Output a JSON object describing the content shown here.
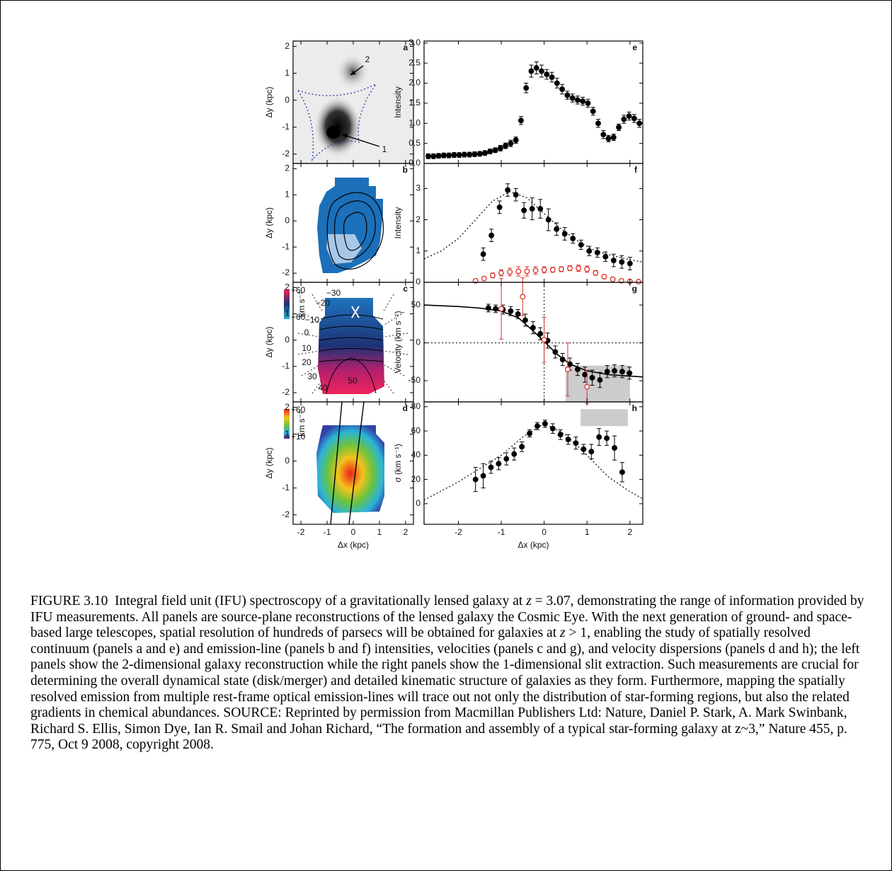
{
  "chart_data": [
    {
      "type": "image",
      "panel": "a",
      "ylabel": "Δy (kpc)",
      "xlim": [
        -2.3,
        2.3
      ],
      "ylim": [
        -2.35,
        2.2
      ],
      "xticks": [
        -2,
        -1,
        0,
        1,
        2
      ],
      "yticks": [
        -2,
        -1,
        0,
        1,
        2
      ],
      "annotations": [
        "2",
        "1"
      ]
    },
    {
      "type": "image",
      "panel": "b",
      "ylabel": "Δy (kpc)",
      "xlim": [
        -2.3,
        2.3
      ],
      "ylim": [
        -2.35,
        2.2
      ],
      "xticks": [
        -2,
        -1,
        0,
        1,
        2
      ],
      "yticks": [
        -2,
        -1,
        0,
        1,
        2
      ]
    },
    {
      "type": "image",
      "panel": "c",
      "ylabel": "Δy (kpc)",
      "xlim": [
        -2.3,
        2.3
      ],
      "ylim": [
        -2.35,
        2.2
      ],
      "xticks": [
        -2,
        -1,
        0,
        1,
        2
      ],
      "yticks": [
        -2,
        -1,
        0,
        1,
        2
      ],
      "colorbar": {
        "labels": [
          "+60",
          "−60"
        ],
        "unit": "km s⁻¹"
      },
      "annotations": [
        "−30",
        "−20",
        "−10",
        "0",
        "10",
        "20",
        "30",
        "40",
        "50"
      ]
    },
    {
      "type": "image",
      "panel": "d",
      "ylabel": "Δy (kpc)",
      "xlabel": "Δx (kpc)",
      "xlim": [
        -2.3,
        2.3
      ],
      "ylim": [
        -2.35,
        2.2
      ],
      "xticks": [
        -2,
        -1,
        0,
        1,
        2
      ],
      "yticks": [
        -2,
        -1,
        0,
        1,
        2
      ],
      "colorbar": {
        "labels": [
          "+60",
          "+10"
        ],
        "unit": "km s⁻¹"
      }
    },
    {
      "type": "scatter",
      "panel": "e",
      "ylabel": "Intensity",
      "xlim": [
        -2.8,
        2.3
      ],
      "ylim": [
        0,
        3.05
      ],
      "xticks": [
        -2,
        -1,
        0,
        1,
        2
      ],
      "yticks": [
        {
          "value": 0,
          "label": "0.0"
        },
        {
          "value": 0.5,
          "label": "0.5"
        },
        {
          "value": 1,
          "label": "1.0"
        },
        {
          "value": 1.5,
          "label": "1.5"
        },
        {
          "value": 2,
          "label": "2.0"
        },
        {
          "value": 2.5,
          "label": "2.5"
        },
        {
          "value": 3,
          "label": "3.0"
        }
      ],
      "series": [
        {
          "color": "#000000",
          "marker": "filled",
          "x": [
            -2.7,
            -2.58,
            -2.46,
            -2.34,
            -2.22,
            -2.1,
            -1.98,
            -1.86,
            -1.74,
            -1.62,
            -1.5,
            -1.38,
            -1.26,
            -1.14,
            -1.02,
            -0.9,
            -0.78,
            -0.66,
            -0.54,
            -0.42,
            -0.3,
            -0.18,
            -0.06,
            0.06,
            0.18,
            0.3,
            0.42,
            0.54,
            0.66,
            0.78,
            0.9,
            1.02,
            1.14,
            1.26,
            1.38,
            1.5,
            1.62,
            1.74,
            1.86,
            1.98,
            2.1,
            2.22
          ],
          "values": [
            0.18,
            0.18,
            0.19,
            0.2,
            0.2,
            0.21,
            0.21,
            0.22,
            0.22,
            0.23,
            0.24,
            0.26,
            0.3,
            0.33,
            0.38,
            0.44,
            0.5,
            0.58,
            1.07,
            1.88,
            2.3,
            2.38,
            2.3,
            2.22,
            2.15,
            2.0,
            1.85,
            1.7,
            1.63,
            1.58,
            1.55,
            1.5,
            1.3,
            1.0,
            0.72,
            0.62,
            0.65,
            0.9,
            1.1,
            1.18,
            1.12,
            1.0
          ],
          "errors": [
            0.06,
            0.06,
            0.06,
            0.06,
            0.06,
            0.06,
            0.06,
            0.06,
            0.06,
            0.06,
            0.06,
            0.06,
            0.06,
            0.06,
            0.07,
            0.07,
            0.08,
            0.08,
            0.1,
            0.12,
            0.15,
            0.15,
            0.15,
            0.12,
            0.12,
            0.12,
            0.12,
            0.1,
            0.1,
            0.1,
            0.1,
            0.1,
            0.1,
            0.1,
            0.1,
            0.08,
            0.08,
            0.08,
            0.1,
            0.1,
            0.1,
            0.1
          ]
        }
      ]
    },
    {
      "type": "scatter",
      "panel": "f",
      "ylabel": "Intensity",
      "xlim": [
        -2.8,
        2.3
      ],
      "ylim": [
        0,
        3.8
      ],
      "xticks": [
        -2,
        -1,
        0,
        1,
        2
      ],
      "yticks": [
        0,
        1,
        2,
        3
      ],
      "curves": [
        {
          "color": "#000000",
          "style": "dotted",
          "x": [
            -2.8,
            -2.4,
            -2.0,
            -1.6,
            -1.2,
            -0.8,
            -0.4,
            0,
            0.4,
            0.8,
            1.2,
            1.6,
            2.0,
            2.3
          ],
          "values": [
            0.75,
            1.0,
            1.4,
            2.0,
            2.6,
            2.9,
            2.7,
            2.2,
            1.7,
            1.3,
            1.0,
            0.85,
            0.72,
            0.65
          ]
        }
      ],
      "series": [
        {
          "color": "#000000",
          "marker": "filled",
          "x": [
            -1.42,
            -1.23,
            -1.04,
            -0.85,
            -0.66,
            -0.47,
            -0.28,
            -0.09,
            0.1,
            0.29,
            0.48,
            0.67,
            0.86,
            1.05,
            1.24,
            1.43,
            1.62,
            1.81,
            2.0
          ],
          "values": [
            0.9,
            1.5,
            2.4,
            2.95,
            2.8,
            2.3,
            2.35,
            2.35,
            2.0,
            1.7,
            1.55,
            1.4,
            1.2,
            1.0,
            0.95,
            0.82,
            0.7,
            0.65,
            0.6
          ],
          "errors": [
            0.2,
            0.2,
            0.2,
            0.2,
            0.2,
            0.25,
            0.35,
            0.3,
            0.35,
            0.2,
            0.2,
            0.15,
            0.15,
            0.15,
            0.15,
            0.15,
            0.2,
            0.2,
            0.2
          ]
        },
        {
          "color": "#d9342b",
          "marker": "open",
          "x": [
            -1.6,
            -1.4,
            -1.2,
            -1.0,
            -0.8,
            -0.6,
            -0.4,
            -0.2,
            0,
            0.2,
            0.4,
            0.6,
            0.8,
            1.0,
            1.2,
            1.4,
            1.6,
            1.8,
            2.0,
            2.2
          ],
          "values": [
            0.05,
            0.12,
            0.22,
            0.3,
            0.33,
            0.35,
            0.35,
            0.38,
            0.4,
            0.4,
            0.42,
            0.45,
            0.45,
            0.42,
            0.3,
            0.18,
            0.1,
            0.05,
            0.03,
            0.02
          ],
          "errors": [
            0.05,
            0.06,
            0.08,
            0.1,
            0.12,
            0.15,
            0.15,
            0.12,
            0.1,
            0.08,
            0.08,
            0.08,
            0.1,
            0.1,
            0.08,
            0.06,
            0.05,
            0.05,
            0.04,
            0.04
          ]
        }
      ]
    },
    {
      "type": "scatter",
      "panel": "g",
      "ylabel": "Velocity (km s⁻¹)",
      "xlim": [
        -2.8,
        2.3
      ],
      "ylim": [
        -78,
        80
      ],
      "xticks": [
        -2,
        -1,
        0,
        1,
        2
      ],
      "yticks": [
        -50,
        0,
        50
      ],
      "shade": {
        "color": "#cccccc",
        "x": [
          0.5,
          2.0
        ],
        "y": [
          -78,
          -30
        ]
      },
      "hlines": [
        0
      ],
      "vlines": [
        0
      ],
      "curves": [
        {
          "color": "#000000",
          "style": "solid",
          "x": [
            -2.8,
            -2.0,
            -1.5,
            -1.0,
            -0.6,
            -0.3,
            0,
            0.3,
            0.6,
            1.0,
            1.5,
            2.0,
            2.3
          ],
          "values": [
            50,
            48,
            46,
            42,
            33,
            18,
            2,
            -15,
            -28,
            -37,
            -42,
            -44,
            -45
          ]
        }
      ],
      "series": [
        {
          "color": "#000000",
          "marker": "filled",
          "x": [
            -1.3,
            -1.13,
            -0.96,
            -0.78,
            -0.61,
            -0.44,
            -0.26,
            -0.09,
            0.08,
            0.26,
            0.43,
            0.6,
            0.78,
            0.95,
            1.12,
            1.3,
            1.47,
            1.64,
            1.82,
            1.99
          ],
          "values": [
            46,
            45,
            44,
            42,
            38,
            30,
            20,
            12,
            3,
            -12,
            -22,
            -28,
            -35,
            -42,
            -46,
            -49,
            -38,
            -37,
            -38,
            -40
          ],
          "errors": [
            5,
            5,
            6,
            6,
            6,
            8,
            8,
            8,
            10,
            8,
            8,
            8,
            8,
            10,
            10,
            10,
            8,
            8,
            8,
            8
          ]
        },
        {
          "color": "#d9342b",
          "marker": "open",
          "x": [
            -1.0,
            -0.5,
            0,
            0.55,
            1.0
          ],
          "values": [
            45,
            61,
            4,
            -35,
            -58
          ],
          "errors": [
            40,
            25,
            30,
            35,
            22
          ]
        }
      ]
    },
    {
      "type": "scatter",
      "panel": "h",
      "ylabel": "σ (km s⁻¹)",
      "xlabel": "Δx (kpc)",
      "xlim": [
        -2.8,
        2.3
      ],
      "ylim": [
        -17,
        84
      ],
      "xticks": [
        -2,
        -1,
        0,
        1,
        2
      ],
      "yticks": [
        0,
        20,
        40,
        60,
        80
      ],
      "shade": {
        "color": "#cccccc",
        "x": [
          0.85,
          1.95
        ],
        "y": [
          64,
          78
        ]
      },
      "curves": [
        {
          "color": "#000000",
          "style": "dotted",
          "x": [
            -2.8,
            -2.0,
            -1.0,
            -0.5,
            0,
            0.5,
            1.0,
            1.5,
            2.0,
            2.3
          ],
          "values": [
            3,
            18,
            40,
            55,
            66,
            57,
            40,
            22,
            10,
            4
          ]
        }
      ],
      "series": [
        {
          "color": "#000000",
          "marker": "filled",
          "x": [
            -1.6,
            -1.42,
            -1.24,
            -1.06,
            -0.88,
            -0.7,
            -0.52,
            -0.34,
            -0.16,
            0.02,
            0.2,
            0.38,
            0.56,
            0.74,
            0.92,
            1.1,
            1.28,
            1.46,
            1.64,
            1.82
          ],
          "values": [
            20,
            23,
            30,
            33,
            37,
            41,
            47,
            58,
            64,
            66,
            62,
            57,
            53,
            50,
            45,
            43,
            55,
            54,
            46,
            26
          ],
          "errors": [
            10,
            10,
            5,
            5,
            5,
            5,
            4,
            3,
            3,
            3,
            4,
            4,
            4,
            5,
            4,
            6,
            7,
            6,
            10,
            8
          ]
        }
      ]
    }
  ],
  "caption": [
    {
      "text": "FIGURE 3.10  Integral field unit (IFU) spectroscopy of a gravitationally lensed galaxy at "
    },
    {
      "text": "z",
      "italic": true
    },
    {
      "text": " = 3.07, demonstrating the range of information provided by IFU measurements. All panels are source-plane reconstructions of the lensed galaxy the Cosmic Eye. With the next generation of ground- and space-based large telescopes, spatial resolution of hundreds of parsecs will be obtained for galaxies at "
    },
    {
      "text": "z",
      "italic": true
    },
    {
      "text": " > 1, enabling the study of spatially resolved continuum (panels a and e) and emission-line (panels b and f) intensities, velocities (panels c and g), and velocity dispersions (panels d and h); the left panels show the 2-dimensional galaxy reconstruction while the right panels show the 1-dimensional slit extraction. Such measurements are crucial for determining the overall dynamical state (disk/merger) and detailed kinematic structure of galaxies as they form. Furthermore, mapping the spatially resolved emission from multiple rest-frame optical emission-lines will trace out not only the distribution of star-forming regions, but also the related gradients in chemical abundances. SOURCE: Reprinted by permission from Macmillan Publishers Ltd: Nature, Daniel P. Stark, A. Mark Swinbank, Richard S. Ellis, Simon Dye, Ian R. Smail and Johan Richard, “The formation and assembly of a typical star-forming galaxy at z~3,” Nature 455, p. 775, Oct 9 2008, copyright 2008."
    }
  ]
}
